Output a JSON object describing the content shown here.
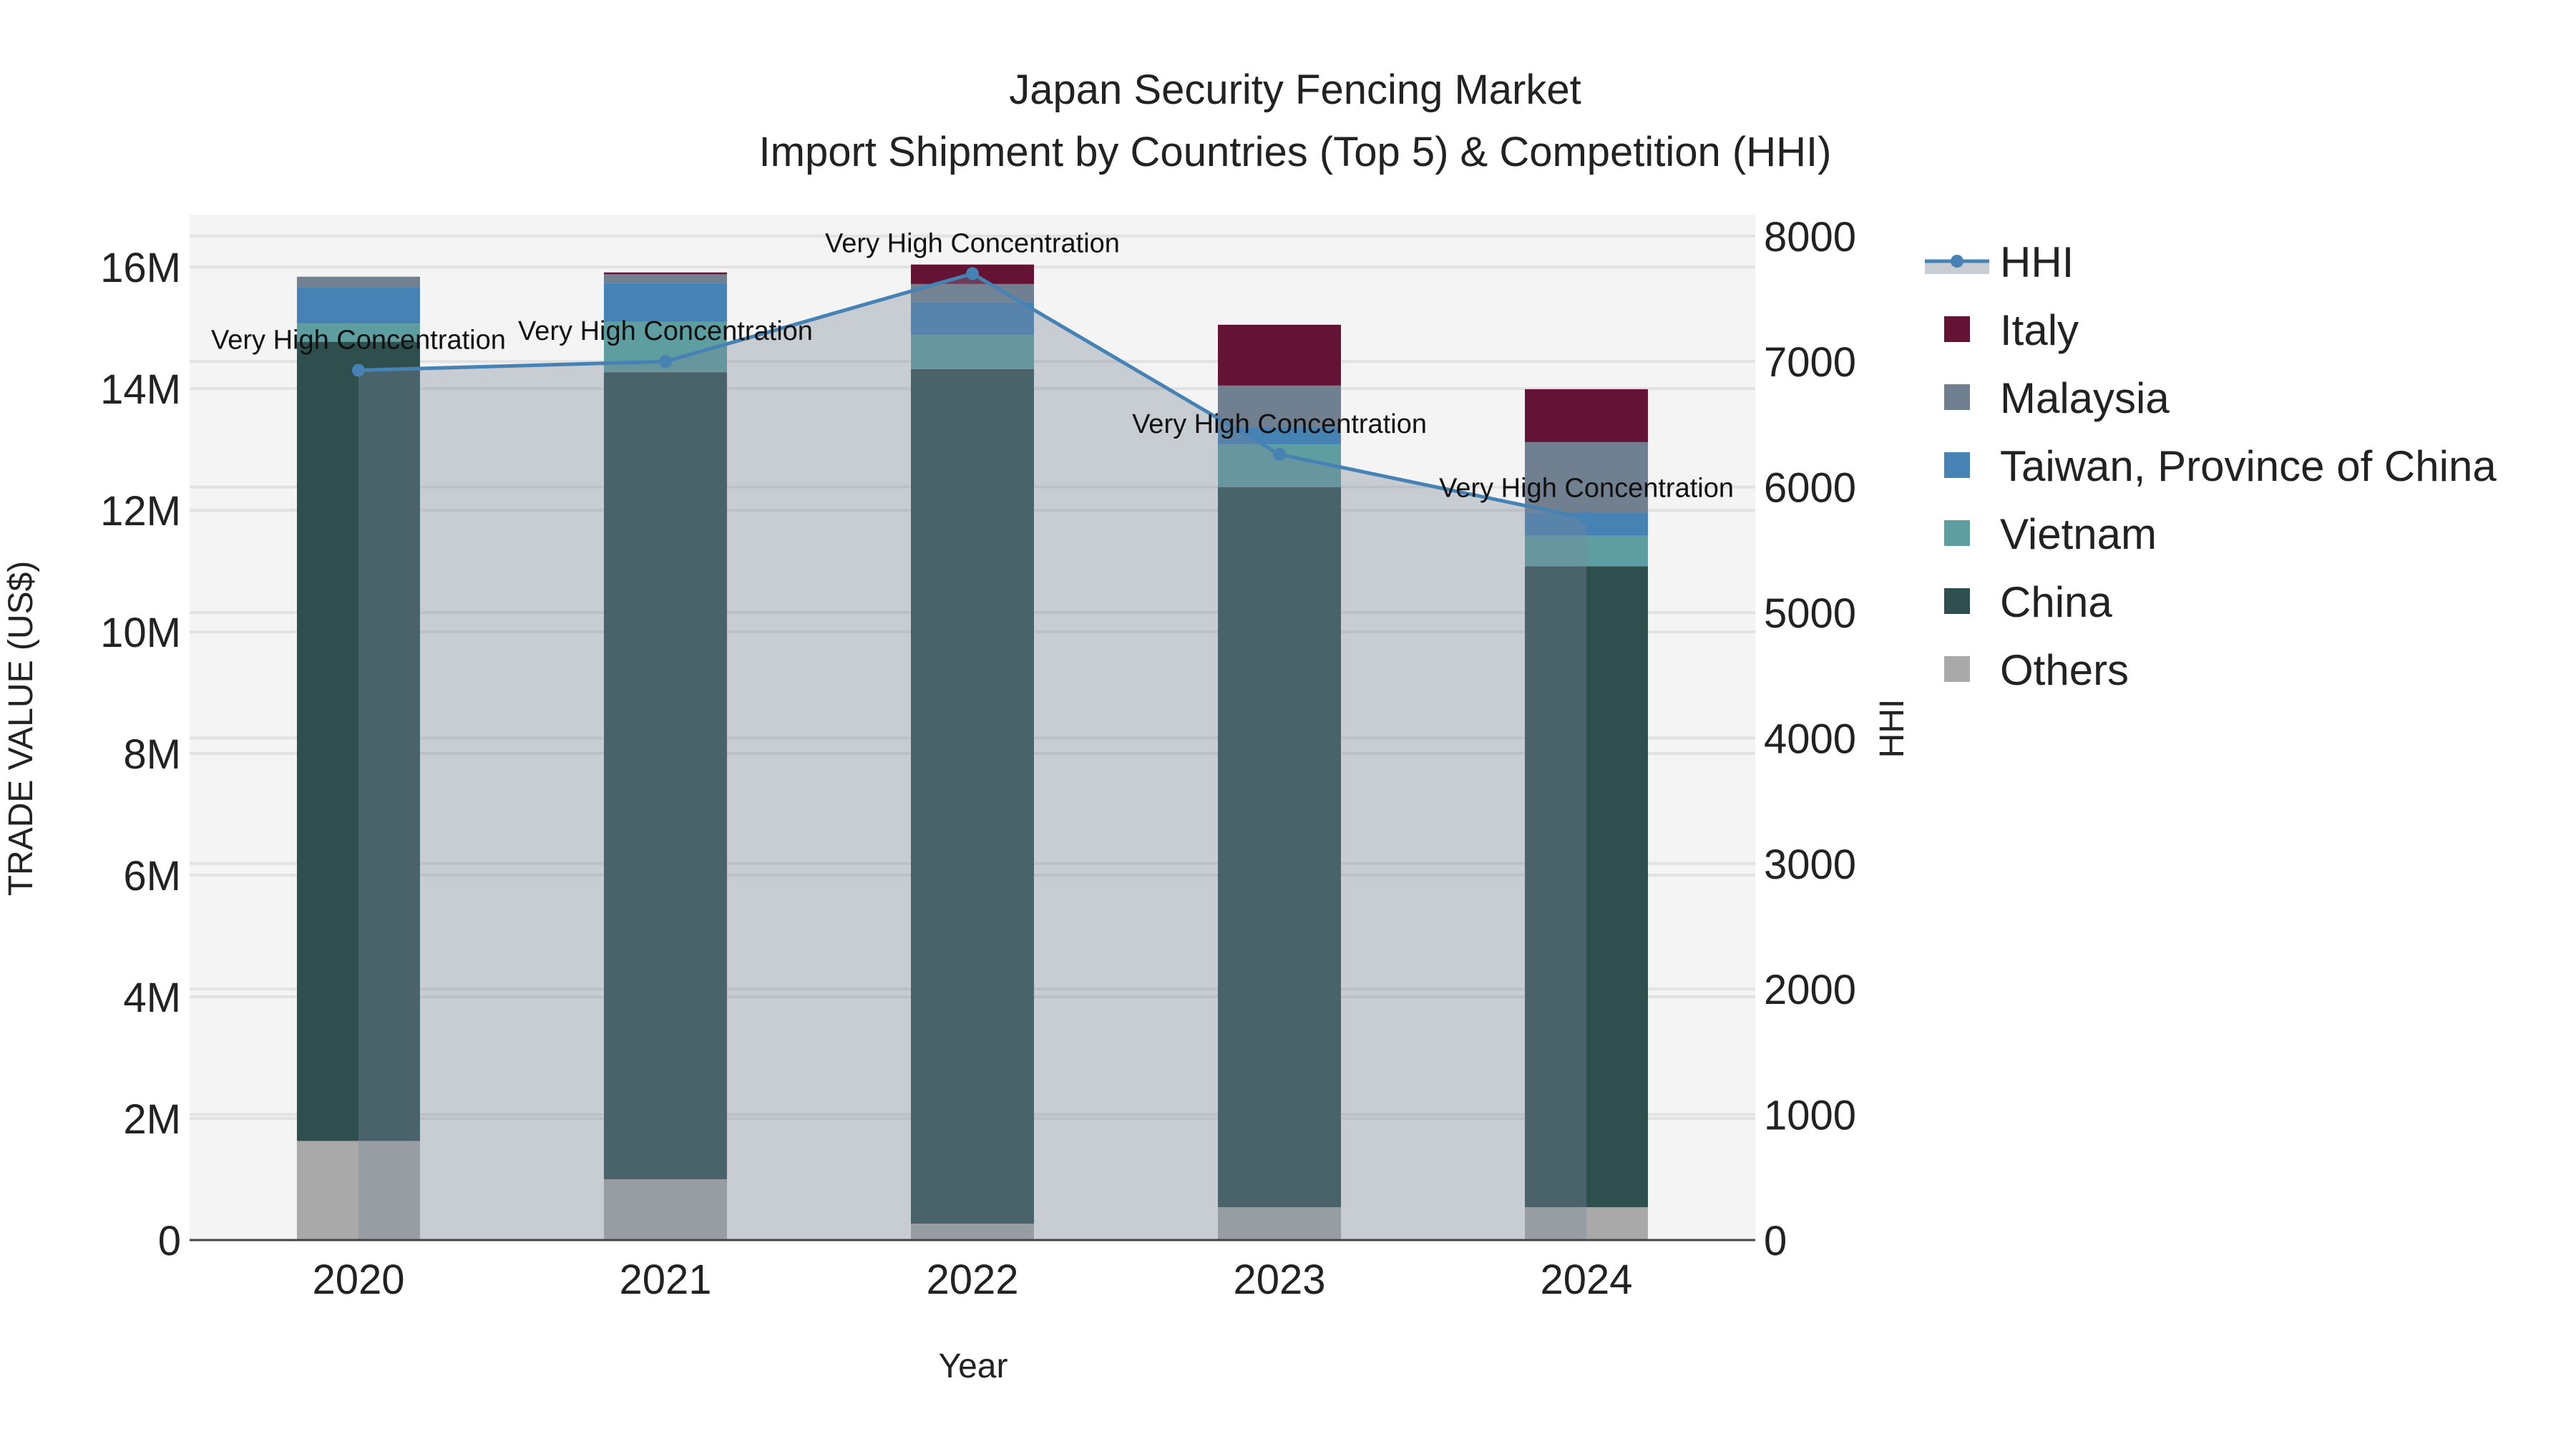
{
  "chart_data": {
    "type": "bar",
    "title": "Japan Security Fencing Market",
    "subtitle": "Import Shipment by Countries (Top 5) & Competition (HHI)",
    "xlabel": "Year",
    "ylabel": "TRADE VALUE (US$)",
    "y2label": "HHI",
    "categories": [
      "2020",
      "2021",
      "2022",
      "2023",
      "2024"
    ],
    "ylim": [
      0,
      16860000
    ],
    "y2lim": [
      0,
      8170
    ],
    "yticks": [
      0,
      2000000,
      4000000,
      6000000,
      8000000,
      10000000,
      12000000,
      14000000,
      16000000
    ],
    "ytick_labels": [
      "0",
      "2M",
      "4M",
      "6M",
      "8M",
      "10M",
      "12M",
      "14M",
      "16M"
    ],
    "y2ticks": [
      0,
      1000,
      2000,
      3000,
      4000,
      5000,
      6000,
      7000,
      8000
    ],
    "y2tick_labels": [
      "0",
      "1000",
      "2000",
      "3000",
      "4000",
      "5000",
      "6000",
      "7000",
      "8000"
    ],
    "stacked": true,
    "series": [
      {
        "name": "Others",
        "color": "#A9A9A9",
        "values": [
          1630000,
          1000000,
          270000,
          540000,
          540000
        ]
      },
      {
        "name": "China",
        "color": "#2F4F4F",
        "values": [
          13140000,
          13270000,
          14050000,
          11840000,
          10540000
        ]
      },
      {
        "name": "Vietnam",
        "color": "#5F9EA0",
        "values": [
          300000,
          830000,
          560000,
          700000,
          500000
        ]
      },
      {
        "name": "Taiwan, Province of China",
        "color": "#4682B4",
        "values": [
          600000,
          640000,
          540000,
          280000,
          380000
        ]
      },
      {
        "name": "Malaysia",
        "color": "#708090",
        "values": [
          170000,
          140000,
          300000,
          690000,
          1160000
        ]
      },
      {
        "name": "Italy",
        "color": "#641335",
        "values": [
          0,
          30000,
          320000,
          1000000,
          870000
        ]
      }
    ],
    "line": {
      "name": "HHI",
      "color": "#4682B4",
      "axis": "y2",
      "values": [
        6930,
        7000,
        7700,
        6260,
        5750
      ]
    },
    "annotations": [
      "Very High Concentration",
      "Very High Concentration",
      "Very High Concentration",
      "Very High Concentration",
      "Very High Concentration"
    ],
    "legend": {
      "placement": "top-right outside",
      "order": [
        "HHI",
        "Italy",
        "Malaysia",
        "Taiwan, Province of China",
        "Vietnam",
        "China",
        "Others"
      ]
    },
    "grid": true
  }
}
